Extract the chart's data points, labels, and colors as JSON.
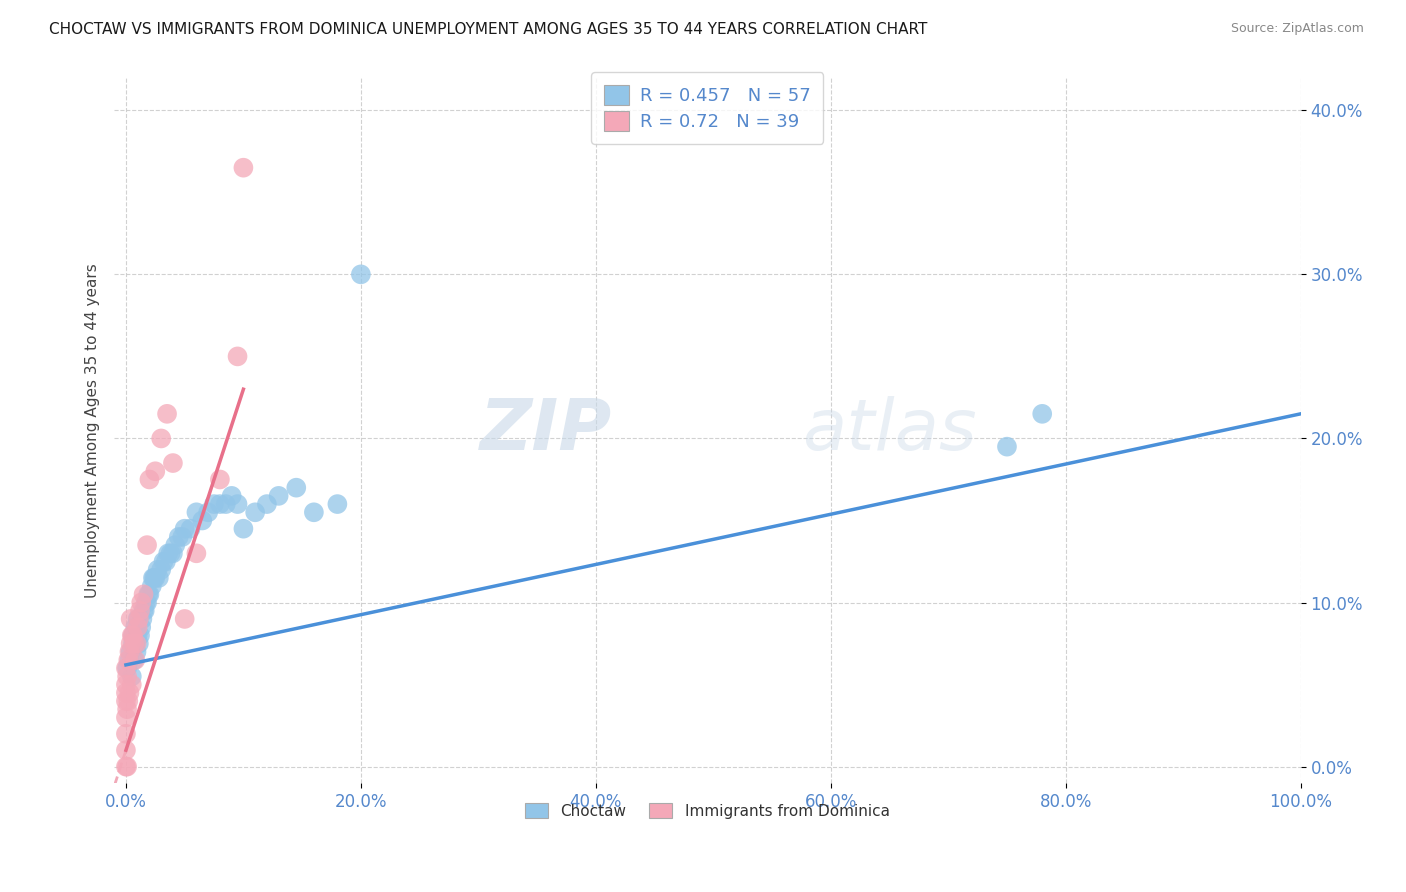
{
  "title": "CHOCTAW VS IMMIGRANTS FROM DOMINICA UNEMPLOYMENT AMONG AGES 35 TO 44 YEARS CORRELATION CHART",
  "source": "Source: ZipAtlas.com",
  "ylabel": "Unemployment Among Ages 35 to 44 years",
  "xlim": [
    0,
    1.0
  ],
  "ylim": [
    0,
    0.42
  ],
  "choctaw_R": 0.457,
  "choctaw_N": 57,
  "dominica_R": 0.72,
  "dominica_N": 39,
  "choctaw_color": "#92c5e8",
  "dominica_color": "#f4a8b8",
  "choctaw_line_color": "#4a90d9",
  "dominica_line_color": "#e8708a",
  "watermark_zip": "ZIP",
  "watermark_atlas": "atlas",
  "background_color": "#ffffff",
  "grid_color": "#cccccc",
  "tick_color": "#5588cc",
  "choctaw_line_start_y": 0.062,
  "choctaw_line_end_y": 0.215,
  "dominica_line_slope": 2.2,
  "dominica_line_intercept": 0.01,
  "choctaw_scatter_x": [
    0.001,
    0.003,
    0.004,
    0.005,
    0.006,
    0.006,
    0.007,
    0.008,
    0.008,
    0.009,
    0.01,
    0.01,
    0.011,
    0.012,
    0.013,
    0.014,
    0.015,
    0.016,
    0.017,
    0.018,
    0.019,
    0.02,
    0.022,
    0.023,
    0.024,
    0.025,
    0.027,
    0.028,
    0.03,
    0.032,
    0.034,
    0.036,
    0.038,
    0.04,
    0.042,
    0.045,
    0.048,
    0.05,
    0.055,
    0.06,
    0.065,
    0.07,
    0.075,
    0.08,
    0.085,
    0.09,
    0.095,
    0.1,
    0.11,
    0.12,
    0.13,
    0.145,
    0.16,
    0.18,
    0.2,
    0.75,
    0.78
  ],
  "choctaw_scatter_y": [
    0.06,
    0.065,
    0.07,
    0.055,
    0.075,
    0.08,
    0.065,
    0.075,
    0.085,
    0.07,
    0.08,
    0.09,
    0.075,
    0.08,
    0.085,
    0.09,
    0.095,
    0.095,
    0.1,
    0.1,
    0.105,
    0.105,
    0.11,
    0.115,
    0.115,
    0.115,
    0.12,
    0.115,
    0.12,
    0.125,
    0.125,
    0.13,
    0.13,
    0.13,
    0.135,
    0.14,
    0.14,
    0.145,
    0.145,
    0.155,
    0.15,
    0.155,
    0.16,
    0.16,
    0.16,
    0.165,
    0.16,
    0.145,
    0.155,
    0.16,
    0.165,
    0.17,
    0.155,
    0.16,
    0.3,
    0.195,
    0.215
  ],
  "dominica_scatter_x": [
    0.0,
    0.0,
    0.0,
    0.0,
    0.0,
    0.0,
    0.0,
    0.0,
    0.001,
    0.001,
    0.001,
    0.002,
    0.002,
    0.003,
    0.003,
    0.004,
    0.004,
    0.005,
    0.005,
    0.006,
    0.007,
    0.008,
    0.009,
    0.01,
    0.011,
    0.012,
    0.013,
    0.015,
    0.018,
    0.02,
    0.025,
    0.03,
    0.035,
    0.04,
    0.05,
    0.06,
    0.08,
    0.095,
    0.1
  ],
  "dominica_scatter_y": [
    0.0,
    0.01,
    0.02,
    0.03,
    0.04,
    0.045,
    0.05,
    0.06,
    0.0,
    0.035,
    0.055,
    0.04,
    0.065,
    0.045,
    0.07,
    0.075,
    0.09,
    0.05,
    0.08,
    0.08,
    0.075,
    0.065,
    0.075,
    0.085,
    0.09,
    0.095,
    0.1,
    0.105,
    0.135,
    0.175,
    0.18,
    0.2,
    0.215,
    0.185,
    0.09,
    0.13,
    0.175,
    0.25,
    0.365
  ]
}
